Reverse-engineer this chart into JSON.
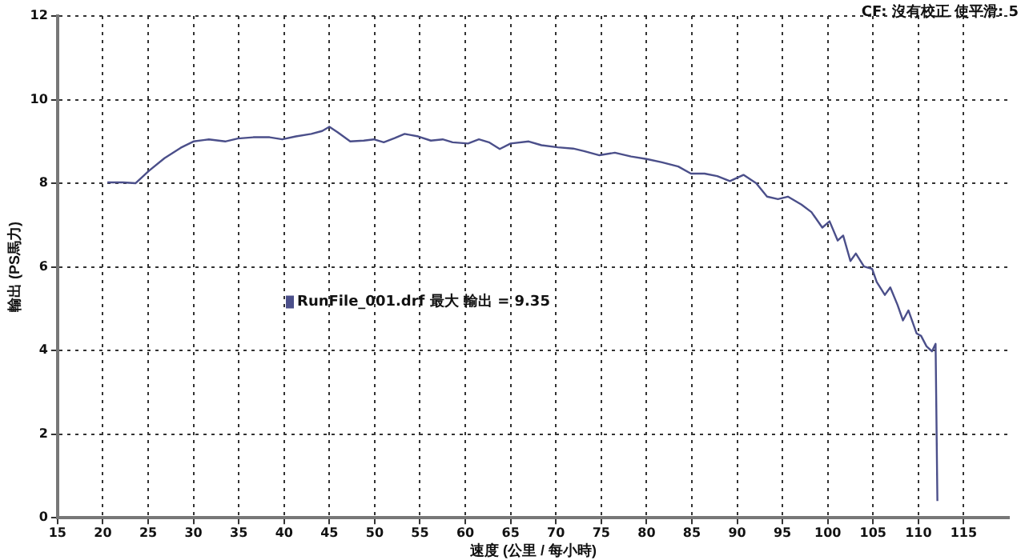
{
  "chart_data": {
    "type": "line",
    "xlabel": "速度 (公里 / 每小時)",
    "ylabel": "輸出 (PS馬力)",
    "annotations": [
      "CF: 沒有校正  使平滑: 5"
    ],
    "xlim": [
      15,
      120
    ],
    "xticks": [
      15,
      20,
      25,
      30,
      35,
      40,
      45,
      50,
      55,
      60,
      65,
      70,
      75,
      80,
      85,
      90,
      95,
      100,
      105,
      110,
      115
    ],
    "ylim": [
      0,
      12
    ],
    "yticks": [
      0,
      2,
      4,
      6,
      8,
      10,
      12
    ],
    "grid": true,
    "legend": "left",
    "marker": "none",
    "line_style": "solid",
    "series": [
      {
        "name": "RunFile_001.drf 最大 輸出 = 9.35",
        "color": "#4b4f8a",
        "x": [
          20.5,
          22.2,
          23.6,
          25.1,
          26.8,
          28.6,
          30.0,
          31.7,
          33.5,
          34.9,
          36.6,
          38.4,
          39.8,
          41.3,
          43.0,
          44.2,
          45.0,
          45.9,
          47.3,
          48.8,
          49.9,
          51.0,
          52.2,
          53.3,
          54.8,
          56.2,
          57.5,
          58.6,
          60.3,
          61.5,
          62.6,
          63.8,
          65.0,
          67.0,
          68.4,
          70.2,
          71.9,
          73.1,
          74.8,
          76.5,
          78.3,
          80.0,
          81.7,
          83.5,
          84.9,
          86.4,
          87.8,
          89.2,
          90.7,
          92.1,
          93.3,
          94.5,
          95.6,
          97.1,
          98.2,
          99.4,
          100.2,
          101.1,
          101.7,
          102.5,
          103.1,
          104.0,
          104.9,
          105.4,
          106.3,
          106.9,
          107.7,
          108.3,
          108.9,
          109.8,
          110.3,
          110.9,
          111.5,
          111.9,
          112.1
        ],
        "values": [
          8.02,
          8.02,
          8.0,
          8.3,
          8.6,
          8.85,
          9.0,
          9.05,
          9.0,
          9.07,
          9.1,
          9.1,
          9.05,
          9.12,
          9.18,
          9.25,
          9.35,
          9.22,
          9.0,
          9.02,
          9.05,
          8.98,
          9.08,
          9.18,
          9.12,
          9.02,
          9.05,
          8.98,
          8.95,
          9.05,
          8.98,
          8.82,
          8.95,
          9.0,
          8.91,
          8.86,
          8.83,
          8.77,
          8.67,
          8.73,
          8.64,
          8.58,
          8.5,
          8.4,
          8.23,
          8.23,
          8.17,
          8.05,
          8.2,
          8.0,
          7.68,
          7.62,
          7.68,
          7.49,
          7.31,
          6.94,
          7.09,
          6.63,
          6.75,
          6.14,
          6.32,
          6.01,
          5.95,
          5.64,
          5.33,
          5.51,
          5.09,
          4.72,
          4.96,
          4.41,
          4.35,
          4.1,
          3.98,
          4.16,
          0.4
        ]
      }
    ]
  }
}
